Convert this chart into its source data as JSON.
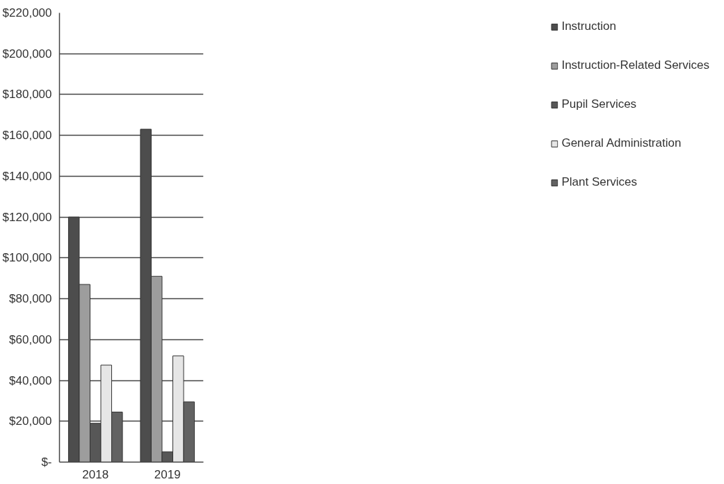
{
  "chart_data": {
    "type": "bar",
    "categories": [
      "2018",
      "2019"
    ],
    "series": [
      {
        "name": "Instruction",
        "color": "#4d4d4d",
        "values": [
          120000,
          163000
        ]
      },
      {
        "name": "Instruction-Related Services",
        "color": "#9d9d9d",
        "values": [
          87000,
          91000
        ]
      },
      {
        "name": "Pupil Services",
        "color": "#575757",
        "values": [
          19000,
          5000
        ]
      },
      {
        "name": "General Administration",
        "color": "#e6e6e6",
        "values": [
          47500,
          52000
        ]
      },
      {
        "name": "Plant Services",
        "color": "#626262",
        "values": [
          24500,
          29500
        ]
      }
    ],
    "ylim": [
      0,
      220000
    ],
    "yticks": [
      {
        "value": 0,
        "label": "$-"
      },
      {
        "value": 20000,
        "label": "$20,000"
      },
      {
        "value": 40000,
        "label": "$40,000"
      },
      {
        "value": 60000,
        "label": "$60,000"
      },
      {
        "value": 80000,
        "label": "$80,000"
      },
      {
        "value": 100000,
        "label": "$100,000"
      },
      {
        "value": 120000,
        "label": "$120,000"
      },
      {
        "value": 140000,
        "label": "$140,000"
      },
      {
        "value": 160000,
        "label": "$160,000"
      },
      {
        "value": 180000,
        "label": "$180,000"
      },
      {
        "value": 200000,
        "label": "$200,000"
      },
      {
        "value": 220000,
        "label": "$220,000"
      }
    ],
    "grid": "y",
    "legend": "right"
  }
}
